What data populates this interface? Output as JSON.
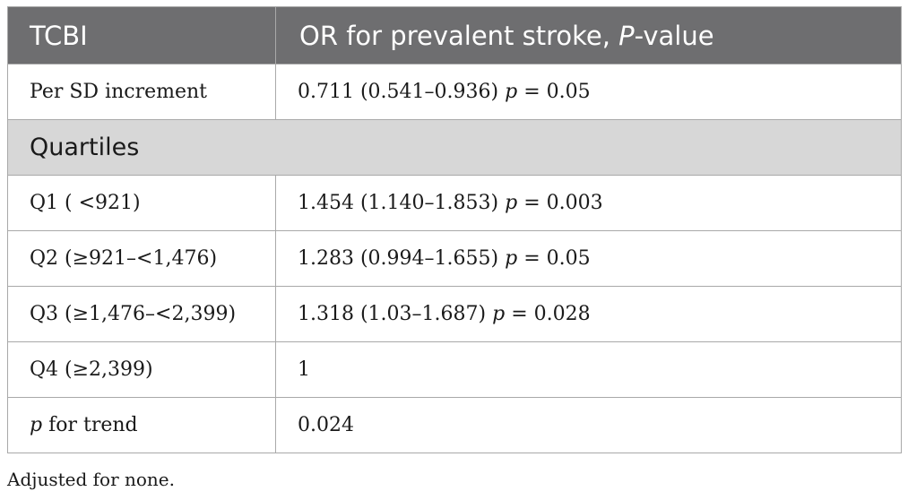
{
  "table": {
    "header": {
      "col1": "TCBI",
      "col2_prefix": "OR for prevalent stroke, ",
      "col2_italic": "P",
      "col2_suffix": "-value"
    },
    "top_row": {
      "label": "Per SD increment",
      "value_main": "0.711 (0.541–0.936) ",
      "value_p": "p",
      "value_rest": " = 0.05"
    },
    "section_label": "Quartiles",
    "rows": [
      {
        "label": "Q1 ( <921)",
        "value_main": "1.454 (1.140–1.853) ",
        "value_p": "p",
        "value_rest": " = 0.003"
      },
      {
        "label": "Q2 (≥921–<1,476)",
        "value_main": "1.283 (0.994–1.655) ",
        "value_p": "p",
        "value_rest": " = 0.05"
      },
      {
        "label": "Q3 (≥1,476–<2,399)",
        "value_main": "1.318 (1.03–1.687) ",
        "value_p": "p",
        "value_rest": " = 0.028"
      },
      {
        "label": "Q4 (≥2,399)",
        "value_main": "1",
        "value_p": "",
        "value_rest": ""
      }
    ],
    "trend_row": {
      "label_p": "p",
      "label_rest": " for trend",
      "value": "0.024"
    }
  },
  "footnote": "Adjusted for none."
}
